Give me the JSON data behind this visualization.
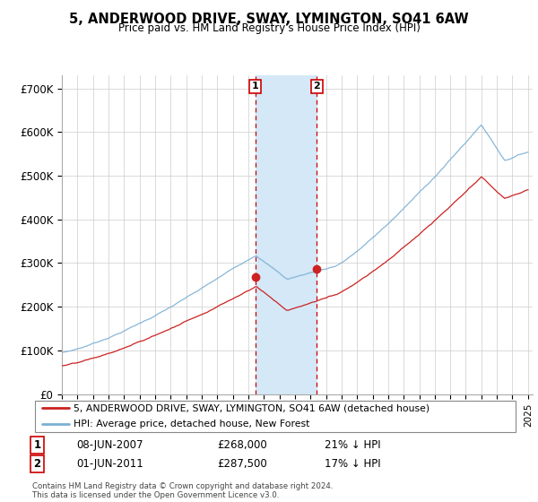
{
  "title": "5, ANDERWOOD DRIVE, SWAY, LYMINGTON, SO41 6AW",
  "subtitle": "Price paid vs. HM Land Registry's House Price Index (HPI)",
  "legend_line1": "5, ANDERWOOD DRIVE, SWAY, LYMINGTON, SO41 6AW (detached house)",
  "legend_line2": "HPI: Average price, detached house, New Forest",
  "sale1_date": "08-JUN-2007",
  "sale1_price": "£268,000",
  "sale1_hpi": "21% ↓ HPI",
  "sale1_year": 2007.44,
  "sale1_value": 268000,
  "sale2_date": "01-JUN-2011",
  "sale2_price": "£287,500",
  "sale2_hpi": "17% ↓ HPI",
  "sale2_year": 2011.41,
  "sale2_value": 287500,
  "shaded_region_color": "#d4e8f7",
  "vline_color": "#cc0000",
  "hpi_line_color": "#7bafd4",
  "price_line_color": "#cc2222",
  "grid_color": "#cccccc",
  "yticks": [
    0,
    100000,
    200000,
    300000,
    400000,
    500000,
    600000,
    700000
  ],
  "ylabels": [
    "£0",
    "£100K",
    "£200K",
    "£300K",
    "£400K",
    "£500K",
    "£600K",
    "£700K"
  ],
  "ylim": [
    0,
    730000
  ],
  "xlim": [
    1995,
    2025.3
  ],
  "footer": "Contains HM Land Registry data © Crown copyright and database right 2024.\nThis data is licensed under the Open Government Licence v3.0."
}
